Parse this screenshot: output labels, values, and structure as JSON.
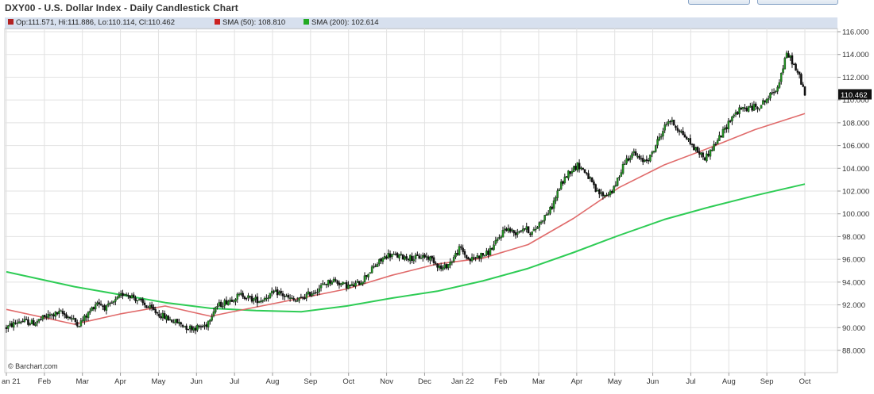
{
  "header": {
    "title": "DXY00 - U.S. Dollar Index - Daily Candlestick Chart"
  },
  "legend": {
    "ohlc": "Op:111.571, Hi:111.886, Lo:110.114, Cl:110.462",
    "sma50": "SMA (50): 108.810",
    "sma200": "SMA (200): 102.614"
  },
  "watermark": "© Barchart.com",
  "colors": {
    "candle_up": "#1f8f1f",
    "candle_down": "#111111",
    "sma50": "#e06b6b",
    "sma200": "#2ecc55",
    "grid": "#e2e2e2",
    "ohlc_swatch": "#b22222",
    "sma50_swatch": "#cc2222",
    "sma200_swatch": "#22aa22"
  },
  "chart_data": {
    "type": "candlestick",
    "title": "DXY00 - U.S. Dollar Index - Daily Candlestick Chart",
    "ylim": [
      88,
      116
    ],
    "y_ticks": [
      "116.000",
      "114.000",
      "112.000",
      "110.000",
      "108.000",
      "106.000",
      "104.000",
      "102.000",
      "100.000",
      "98.000",
      "96.000",
      "94.000",
      "92.000",
      "90.000",
      "88.000"
    ],
    "last_price_label": "110.462",
    "last_price": 110.462,
    "x_labels": [
      "an 21",
      "Feb",
      "Mar",
      "Apr",
      "May",
      "Jun",
      "Jul",
      "Aug",
      "Sep",
      "Oct",
      "Nov",
      "Dec",
      "Jan 22",
      "Feb",
      "Mar",
      "Apr",
      "May",
      "Jun",
      "Jul",
      "Aug",
      "Sep",
      "Oct"
    ],
    "grid": true,
    "price_path": [
      [
        0,
        90.0
      ],
      [
        3,
        90.6
      ],
      [
        6,
        90.4
      ],
      [
        9,
        91.0
      ],
      [
        12,
        91.3
      ],
      [
        14,
        90.9
      ],
      [
        16,
        90.3
      ],
      [
        18,
        91.2
      ],
      [
        20,
        92.3
      ],
      [
        22,
        91.7
      ],
      [
        24,
        92.3
      ],
      [
        26,
        93.1
      ],
      [
        28,
        92.7
      ],
      [
        30,
        92.1
      ],
      [
        32,
        91.6
      ],
      [
        34,
        91.1
      ],
      [
        36,
        90.7
      ],
      [
        38,
        90.4
      ],
      [
        40,
        90.0
      ],
      [
        42,
        90.0
      ],
      [
        44,
        90.2
      ],
      [
        46,
        91.8
      ],
      [
        48,
        92.2
      ],
      [
        50,
        92.6
      ],
      [
        52,
        92.9
      ],
      [
        54,
        92.5
      ],
      [
        56,
        92.4
      ],
      [
        58,
        92.9
      ],
      [
        60,
        93.1
      ],
      [
        62,
        92.6
      ],
      [
        64,
        92.3
      ],
      [
        66,
        92.8
      ],
      [
        68,
        93.2
      ],
      [
        70,
        93.8
      ],
      [
        72,
        94.2
      ],
      [
        74,
        93.8
      ],
      [
        76,
        93.6
      ],
      [
        78,
        94.0
      ],
      [
        80,
        94.9
      ],
      [
        82,
        95.7
      ],
      [
        84,
        96.4
      ],
      [
        86,
        96.3
      ],
      [
        88,
        96.2
      ],
      [
        90,
        96.1
      ],
      [
        92,
        96.3
      ],
      [
        94,
        96.0
      ],
      [
        96,
        95.1
      ],
      [
        98,
        95.8
      ],
      [
        100,
        97.0
      ],
      [
        102,
        95.9
      ],
      [
        104,
        96.3
      ],
      [
        106,
        96.5
      ],
      [
        108,
        97.5
      ],
      [
        110,
        98.8
      ],
      [
        112,
        98.3
      ],
      [
        114,
        98.8
      ],
      [
        116,
        98.3
      ],
      [
        118,
        99.5
      ],
      [
        120,
        100.4
      ],
      [
        122,
        102.4
      ],
      [
        124,
        103.7
      ],
      [
        126,
        104.3
      ],
      [
        128,
        103.5
      ],
      [
        130,
        101.9
      ],
      [
        132,
        101.6
      ],
      [
        134,
        102.2
      ],
      [
        136,
        104.4
      ],
      [
        138,
        105.4
      ],
      [
        140,
        104.6
      ],
      [
        142,
        105.0
      ],
      [
        144,
        106.8
      ],
      [
        146,
        108.3
      ],
      [
        148,
        107.5
      ],
      [
        150,
        106.6
      ],
      [
        152,
        105.6
      ],
      [
        154,
        104.9
      ],
      [
        156,
        106.0
      ],
      [
        158,
        107.2
      ],
      [
        160,
        108.6
      ],
      [
        162,
        109.2
      ],
      [
        164,
        109.3
      ],
      [
        166,
        109.5
      ],
      [
        168,
        110.2
      ],
      [
        170,
        111.2
      ],
      [
        172,
        114.0
      ],
      [
        173,
        113.6
      ],
      [
        174,
        112.6
      ],
      [
        175,
        111.9
      ],
      [
        176,
        110.5
      ]
    ],
    "series": [
      {
        "name": "SMA (50)",
        "value_last": 108.81,
        "x": [
          0,
          15,
          25,
          35,
          45,
          55,
          65,
          75,
          85,
          95,
          105,
          115,
          125,
          135,
          145,
          155,
          165,
          176
        ],
        "values": [
          91.6,
          90.3,
          91.2,
          91.9,
          91.0,
          91.8,
          92.6,
          93.4,
          94.6,
          95.6,
          96.1,
          97.3,
          99.6,
          102.3,
          104.3,
          105.8,
          107.4,
          108.81
        ]
      },
      {
        "name": "SMA (200)",
        "value_last": 102.614,
        "x": [
          0,
          15,
          25,
          35,
          45,
          55,
          65,
          75,
          85,
          95,
          105,
          115,
          125,
          135,
          145,
          155,
          165,
          176
        ],
        "values": [
          94.9,
          93.6,
          92.9,
          92.2,
          91.7,
          91.5,
          91.4,
          91.9,
          92.6,
          93.2,
          94.1,
          95.2,
          96.6,
          98.1,
          99.5,
          100.6,
          101.6,
          102.614
        ]
      }
    ]
  }
}
